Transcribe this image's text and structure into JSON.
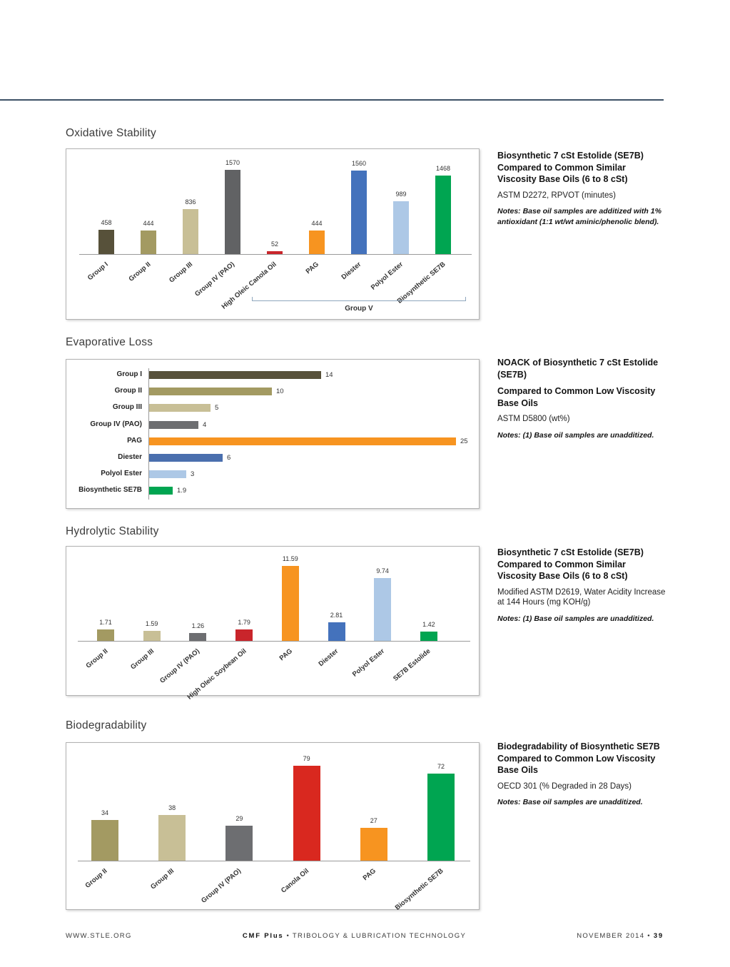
{
  "sections": [
    {
      "heading": "Oxidative Stability",
      "sidebar": {
        "title": "Biosynthetic 7 cSt Estolide (SE7B) Compared to Common Similar Viscosity Base Oils (6 to 8 cSt)",
        "method": "ASTM D2272, RPVOT (minutes)",
        "notes": "Notes: Base oil samples are additized with 1% antioxidant (1:1 wt/wt aminic/phenolic blend)."
      }
    },
    {
      "heading": "Evaporative Loss",
      "sidebar": {
        "title": "NOACK of Biosynthetic 7 cSt Estolide (SE7B)",
        "title2": "Compared to Common Low Viscosity Base Oils",
        "method": "ASTM D5800 (wt%)",
        "notes": "Notes: (1) Base oil samples are unadditized."
      }
    },
    {
      "heading": "Hydrolytic Stability",
      "sidebar": {
        "title": "Biosynthetic 7 cSt Estolide (SE7B) Compared to Common Similar Viscosity Base Oils (6 to 8 cSt)",
        "method": "Modified ASTM D2619, Water Acidity Increase at 144 Hours (mg KOH/g)",
        "notes": "Notes: (1) Base oil samples are unadditized."
      }
    },
    {
      "heading": "Biodegradability",
      "sidebar": {
        "title": "Biodegradability of Biosynthetic SE7B Compared to Common Low Viscosity Base Oils",
        "method": "OECD 301 (% Degraded in 28 Days)",
        "notes": "Notes: Base oil samples are unadditized."
      }
    }
  ],
  "footer": {
    "left": "WWW.STLE.ORG",
    "center_bold": "CMF Plus",
    "center_rest": "•  TRIBOLOGY & LUBRICATION TECHNOLOGY",
    "right_date": "NOVEMBER 2014  •",
    "right_page": "39"
  },
  "chart_data": [
    {
      "type": "bar",
      "title": "Biosynthetic 7 cSt Estolide (SE7B) Compared to Common Similar Viscosity Base Oils (6 to 8 cSt)",
      "subtitle": "ASTM D2272, RPVOT (minutes)",
      "categories": [
        "Group I",
        "Group II",
        "Group III",
        "Group IV (PAO)",
        "High Oleic Canola Oil",
        "PAG",
        "Diester",
        "Polyol Ester",
        "Biosynthetic SE7B"
      ],
      "values": [
        458,
        444,
        836,
        1570,
        52,
        444,
        1560,
        989,
        1468
      ],
      "colors": [
        "#57513a",
        "#a39a62",
        "#c8bf96",
        "#616264",
        "#c9252b",
        "#f79420",
        "#4472bc",
        "#adc8e6",
        "#00a551"
      ],
      "ylim": [
        0,
        1600
      ],
      "grid": false,
      "legend": "none",
      "group_bracket": {
        "label": "Group V",
        "from": 4,
        "to": 8
      }
    },
    {
      "type": "bar",
      "orientation": "horizontal",
      "title": "NOACK of Biosynthetic 7 cSt Estolide (SE7B) Compared to Common Low Viscosity Base Oils",
      "subtitle": "ASTM D5800 (wt%)",
      "categories": [
        "Group I",
        "Group II",
        "Group III",
        "Group IV (PAO)",
        "PAG",
        "Diester",
        "Polyol Ester",
        "Biosynthetic SE7B"
      ],
      "values": [
        14,
        10,
        5,
        4,
        25,
        6,
        3,
        1.9
      ],
      "colors": [
        "#57513a",
        "#a39a62",
        "#c8bf96",
        "#6d6e71",
        "#f79420",
        "#4a6fae",
        "#adc8e6",
        "#00a551"
      ],
      "ylim": [
        0,
        25
      ],
      "grid": false,
      "legend": "none"
    },
    {
      "type": "bar",
      "title": "Biosynthetic 7 cSt Estolide (SE7B) Compared to Common Similar Viscosity Base Oils (6 to 8 cSt)",
      "subtitle": "Modified ASTM D2619, Water Acidity Increase at 144 Hours (mg KOH/g)",
      "categories": [
        "Group II",
        "Group III",
        "Group IV (PAO)",
        "High Oleic Soybean Oil",
        "PAG",
        "Diester",
        "Polyol Ester",
        "SE7B Estolide"
      ],
      "values": [
        1.71,
        1.59,
        1.26,
        1.79,
        11.59,
        2.81,
        9.74,
        1.42
      ],
      "colors": [
        "#a39a62",
        "#c8bf96",
        "#6d6e71",
        "#c9252b",
        "#f79420",
        "#4472bc",
        "#adc8e6",
        "#00a551"
      ],
      "ylim": [
        0,
        12
      ],
      "grid": false,
      "legend": "none"
    },
    {
      "type": "bar",
      "title": "Biodegradability of Biosynthetic SE7B Compared to Common Low Viscosity Base Oils",
      "subtitle": "OECD 301 (% Degraded in 28 Days)",
      "categories": [
        "Group II",
        "Group III",
        "Group IV (PAO)",
        "Canola Oil",
        "PAG",
        "Biosynthetic SE7B"
      ],
      "values": [
        34,
        38,
        29,
        79,
        27,
        72
      ],
      "colors": [
        "#a39a62",
        "#c8bf96",
        "#6d6e71",
        "#d9281f",
        "#f79420",
        "#00a551"
      ],
      "ylim": [
        0,
        80
      ],
      "grid": false,
      "legend": "none"
    }
  ]
}
